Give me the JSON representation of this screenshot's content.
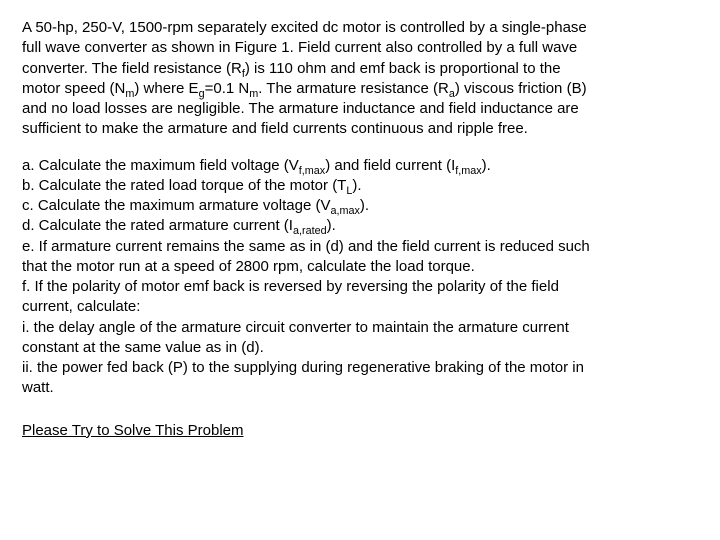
{
  "p": {
    "l1a": "A 50-hp, 250-V, 1500-rpm separately excited dc motor is controlled by a single-phase",
    "l2a": " full wave converter as shown in Figure 1. Field current also controlled by a full wave",
    "l3a": "converter. The field resistance (R",
    "l3sub": "f",
    "l3b": ") is 110 ohm and emf back is proportional to the",
    "l4a": "motor speed (N",
    "l4sub1": "m",
    "l4b": ") where E",
    "l4sub2": "g",
    "l4c": "=0.1 N",
    "l4sub3": "m",
    "l4d": ". The armature resistance (R",
    "l4sub4": "a",
    "l4e": ") viscous friction (B)",
    "l5a": "and no load losses are negligible. The armature inductance and field inductance are",
    "l6a": "sufficient to make the armature and field currents continuous and ripple free."
  },
  "q": {
    "a1": "a. Calculate the maximum field voltage (V",
    "asub1": "f,max",
    "a2": ") and field current (I",
    "asub2": "f,max",
    "a3": ").",
    "b1": "b. Calculate the rated load torque of the motor (T",
    "bsub": "L",
    "b2": ").",
    "c1": "c. Calculate the maximum armature voltage (V",
    "csub": "a,max",
    "c2": ").",
    "d1": "d. Calculate the rated armature current (I",
    "dsub": "a,rated",
    "d2": ").",
    "e1": "e. If armature current remains the same as in (d) and the field current is reduced such",
    "e2": "that the motor run at a speed of 2800 rpm, calculate the load torque.",
    "f1": "f. If the polarity of motor emf back is reversed by reversing the polarity of the field",
    "f2": "current, calculate:",
    "fi1": "i. the delay angle of the armature circuit converter to maintain the armature current",
    "fi2": "constant at the same value as in (d).",
    "fii1": "ii. the power fed back (P) to the supplying during regenerative braking of the motor in",
    "fii2": "watt."
  },
  "footer": "Please Try to Solve This Problem"
}
